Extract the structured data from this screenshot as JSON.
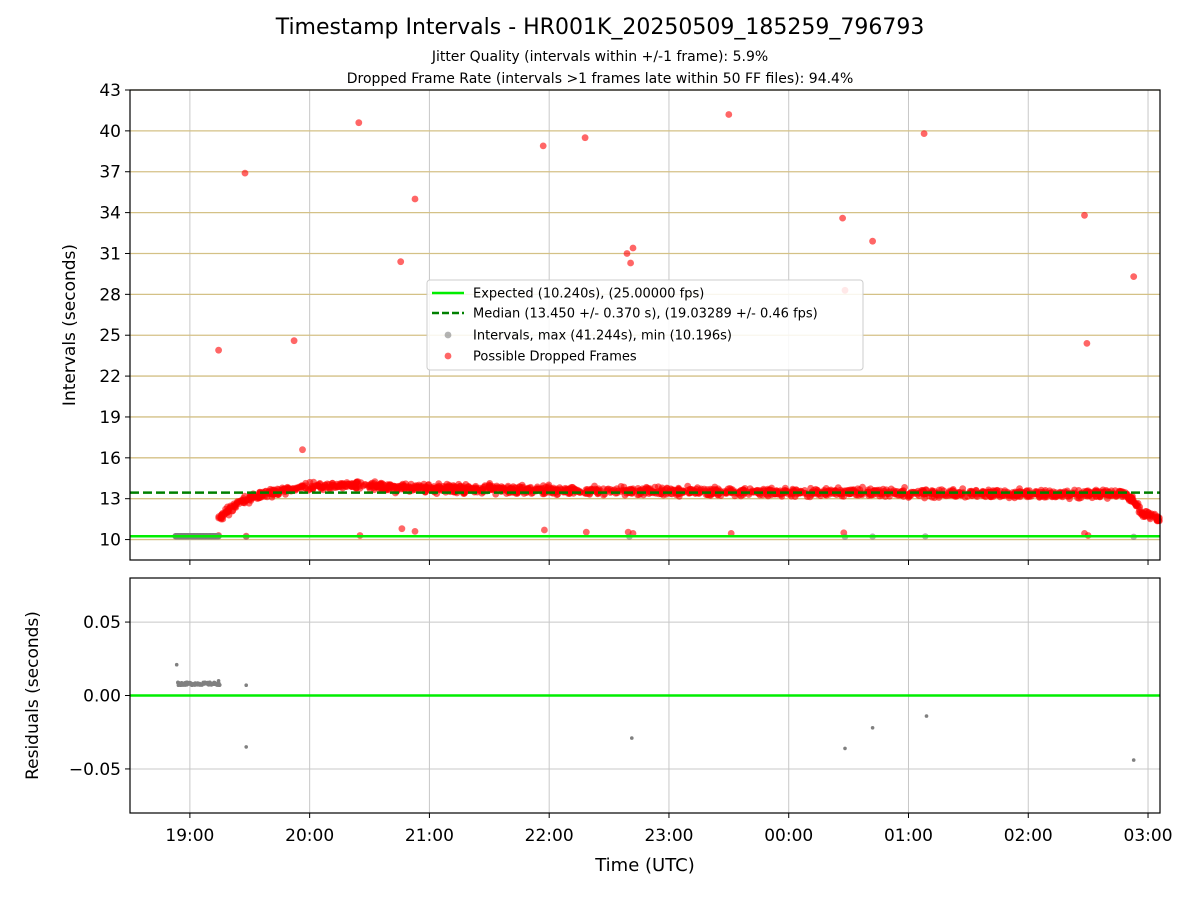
{
  "title": "Timestamp Intervals - HR001K_20250509_185259_796793",
  "subtitle_1": "Jitter Quality (intervals within +/-1 frame): 5.9%",
  "subtitle_2": "Dropped Frame Rate (intervals >1 frames late within 50 FF files): 94.4%",
  "colors": {
    "expected": "#00ee00",
    "median": "#008000",
    "intervals": "#808080",
    "dropped": "#ff0000",
    "hgrid_top": "#d4c186",
    "grid": "#c8c8c8"
  },
  "chart_data": [
    {
      "type": "scatter",
      "ylabel": "Intervals (seconds)",
      "xlim": [
        18.5,
        27.1
      ],
      "ylim": [
        8.5,
        43
      ],
      "y_ticks": [
        10,
        13,
        16,
        19,
        22,
        25,
        28,
        31,
        34,
        37,
        40,
        43
      ],
      "grid": true,
      "legend_position": "center",
      "legend": [
        "Expected (10.240s), (25.00000 fps)",
        "Median (13.450 +/- 0.370 s), (19.03289 +/- 0.46 fps)",
        "Intervals, max (41.244s), min (10.196s)",
        "Possible Dropped Frames"
      ],
      "series": [
        {
          "name": "Expected (10.240s), (25.00000 fps)",
          "kind": "hline",
          "y": 10.24
        },
        {
          "name": "Median (13.450 +/- 0.370 s), (19.03289 +/- 0.46 fps)",
          "kind": "hline",
          "y": 13.45
        },
        {
          "name": "Intervals, max (41.244s), min (10.196s)",
          "kind": "scatter",
          "x_range": [
            18.88,
            19.24
          ],
          "y": 10.248,
          "extra_points": [
            [
              19.47,
              10.21
            ],
            [
              22.67,
              10.21
            ],
            [
              24.47,
              10.2
            ],
            [
              24.7,
              10.22
            ],
            [
              25.14,
              10.23
            ],
            [
              26.88,
              10.2
            ]
          ]
        },
        {
          "name": "Possible Dropped Frames",
          "kind": "scatter",
          "band": {
            "x_range": [
              19.24,
              27.1
            ],
            "profile": [
              [
                19.24,
                11.6
              ],
              [
                19.4,
                12.6
              ],
              [
                19.55,
                13.2
              ],
              [
                19.75,
                13.55
              ],
              [
                20.0,
                13.9
              ],
              [
                20.3,
                14.0
              ],
              [
                20.7,
                13.8
              ],
              [
                21.5,
                13.7
              ],
              [
                22.5,
                13.55
              ],
              [
                23.5,
                13.5
              ],
              [
                24.5,
                13.45
              ],
              [
                25.5,
                13.4
              ],
              [
                26.3,
                13.35
              ],
              [
                26.8,
                13.4
              ],
              [
                26.88,
                12.8
              ],
              [
                26.95,
                11.9
              ],
              [
                27.1,
                11.5
              ]
            ]
          },
          "outliers": [
            [
              19.24,
              23.9
            ],
            [
              19.46,
              36.9
            ],
            [
              19.87,
              24.6
            ],
            [
              19.94,
              16.6
            ],
            [
              20.41,
              40.6
            ],
            [
              20.76,
              30.4
            ],
            [
              20.88,
              35.0
            ],
            [
              21.95,
              38.9
            ],
            [
              22.3,
              39.5
            ],
            [
              22.65,
              31.0
            ],
            [
              22.68,
              30.3
            ],
            [
              22.7,
              31.4
            ],
            [
              23.5,
              41.2
            ],
            [
              24.45,
              33.6
            ],
            [
              24.47,
              28.3
            ],
            [
              24.7,
              31.9
            ],
            [
              25.13,
              39.8
            ],
            [
              26.47,
              33.8
            ],
            [
              26.49,
              24.4
            ],
            [
              26.88,
              29.3
            ],
            [
              19.24,
              10.3
            ],
            [
              19.47,
              10.25
            ],
            [
              20.42,
              10.3
            ],
            [
              20.77,
              10.8
            ],
            [
              20.88,
              10.6
            ],
            [
              21.96,
              10.7
            ],
            [
              22.31,
              10.55
            ],
            [
              22.66,
              10.55
            ],
            [
              22.7,
              10.45
            ],
            [
              23.52,
              10.45
            ],
            [
              24.46,
              10.5
            ],
            [
              26.47,
              10.45
            ],
            [
              26.5,
              10.3
            ]
          ]
        }
      ]
    },
    {
      "type": "scatter",
      "xlabel": "Time (UTC)",
      "ylabel": "Residuals (seconds)",
      "xlim": [
        18.5,
        27.1
      ],
      "ylim": [
        -0.08,
        0.08
      ],
      "y_ticks": [
        -0.05,
        0.0,
        0.05
      ],
      "y_tick_labels": [
        "−0.05",
        "0.00",
        "0.05"
      ],
      "x_ticks": [
        19,
        20,
        21,
        22,
        23,
        24,
        25,
        26,
        27
      ],
      "x_tick_labels": [
        "19:00",
        "20:00",
        "21:00",
        "22:00",
        "23:00",
        "00:00",
        "01:00",
        "02:00",
        "03:00"
      ],
      "grid": true,
      "series": [
        {
          "name": "zero",
          "kind": "hline",
          "y": 0.0
        },
        {
          "name": "residuals",
          "kind": "scatter",
          "cluster": {
            "x_range": [
              18.9,
              19.25
            ],
            "y_range": [
              0.007,
              0.009
            ]
          },
          "points": [
            [
              18.89,
              0.021
            ],
            [
              18.9,
              0.009
            ],
            [
              19.24,
              0.01
            ],
            [
              19.47,
              0.007
            ],
            [
              19.47,
              -0.035
            ],
            [
              22.69,
              -0.029
            ],
            [
              24.47,
              -0.036
            ],
            [
              24.7,
              -0.022
            ],
            [
              25.15,
              -0.014
            ],
            [
              26.88,
              -0.044
            ]
          ]
        }
      ]
    }
  ]
}
